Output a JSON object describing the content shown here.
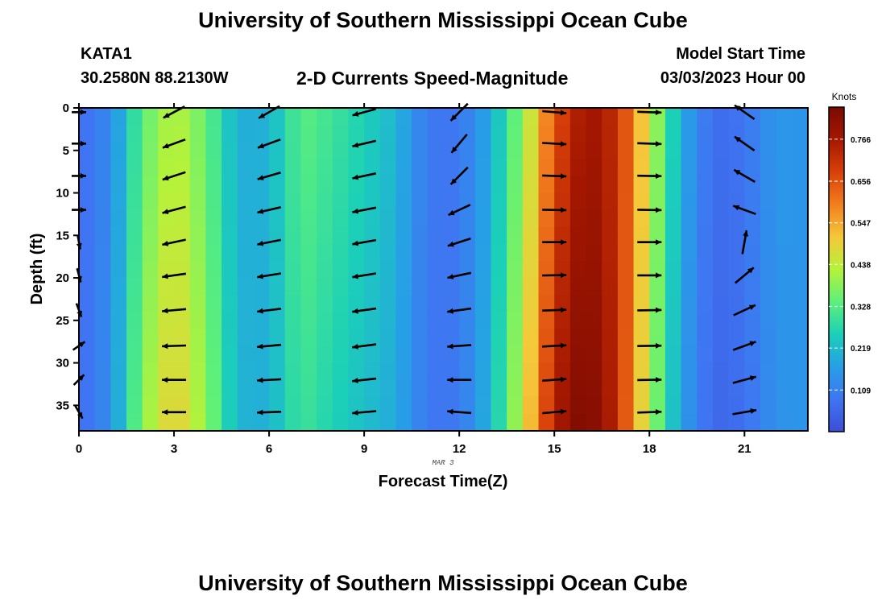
{
  "header": {
    "title": "University of Southern Mississippi Ocean Cube",
    "title_repeat": "University of Southern Mississippi Ocean Cube",
    "station": "KATA1",
    "coordinates": "30.2580N  88.2130W",
    "subtitle": "2-D Currents Speed-Magnitude",
    "model_start_label": "Model Start Time",
    "model_start_value": "03/03/2023 Hour 00"
  },
  "chart_data": {
    "type": "heatmap",
    "title": "2-D Currents Speed-Magnitude",
    "xlabel": "Forecast Time(Z)",
    "ylabel": "Depth (ft)",
    "date_label": "MAR 3",
    "xlim": [
      0,
      23
    ],
    "ylim": [
      38,
      0
    ],
    "x_ticks": [
      0,
      3,
      6,
      9,
      12,
      15,
      18,
      21
    ],
    "y_ticks": [
      0,
      5,
      10,
      15,
      20,
      25,
      30,
      35
    ],
    "colorbar": {
      "label": "Knots",
      "ticks": [
        0.109,
        0.219,
        0.328,
        0.438,
        0.547,
        0.656,
        0.766
      ],
      "range": [
        0.0,
        0.85
      ]
    },
    "speed_by_hour": [
      {
        "hour": 0,
        "speed": 0.07
      },
      {
        "hour": 1,
        "speed": 0.13
      },
      {
        "hour": 2,
        "speed": 0.36
      },
      {
        "hour": 3,
        "speed": 0.47
      },
      {
        "hour": 4,
        "speed": 0.37
      },
      {
        "hour": 5,
        "speed": 0.2
      },
      {
        "hour": 6,
        "speed": 0.2
      },
      {
        "hour": 7,
        "speed": 0.32
      },
      {
        "hour": 8,
        "speed": 0.28
      },
      {
        "hour": 9,
        "speed": 0.24
      },
      {
        "hour": 10,
        "speed": 0.2
      },
      {
        "hour": 11,
        "speed": 0.09
      },
      {
        "hour": 12,
        "speed": 0.09
      },
      {
        "hour": 13,
        "speed": 0.2
      },
      {
        "hour": 14,
        "speed": 0.42
      },
      {
        "hour": 15,
        "speed": 0.7
      },
      {
        "hour": 16,
        "speed": 0.82
      },
      {
        "hour": 17,
        "speed": 0.72
      },
      {
        "hour": 18,
        "speed": 0.43
      },
      {
        "hour": 19,
        "speed": 0.18
      },
      {
        "hour": 20,
        "speed": 0.06
      },
      {
        "hour": 21,
        "speed": 0.08
      },
      {
        "hour": 22,
        "speed": 0.15
      }
    ],
    "vectors": [
      {
        "hour": 0,
        "angle_deg": [
          0,
          0,
          0,
          0,
          -80,
          -75,
          -70,
          35,
          45,
          -60,
          -75,
          -80
        ],
        "length": 0.6
      },
      {
        "hour": 3,
        "angle_deg": [
          208,
          200,
          198,
          195,
          192,
          188,
          185,
          182,
          180,
          180,
          180,
          178
        ],
        "length": 1.0
      },
      {
        "hour": 6,
        "angle_deg": [
          210,
          200,
          196,
          193,
          191,
          189,
          187,
          185,
          183,
          182,
          181,
          180
        ],
        "length": 1.0
      },
      {
        "hour": 9,
        "angle_deg": [
          195,
          193,
          192,
          191,
          190,
          189,
          188,
          187,
          186,
          185,
          184,
          183
        ],
        "length": 1.0
      },
      {
        "hour": 12,
        "angle_deg": [
          225,
          230,
          225,
          205,
          198,
          192,
          188,
          184,
          180,
          176,
          172,
          165
        ],
        "length": 1.0
      },
      {
        "hour": 15,
        "angle_deg": [
          -5,
          -3,
          -2,
          -1,
          0,
          1,
          2,
          3,
          4,
          5,
          6,
          8
        ],
        "length": 1.0
      },
      {
        "hour": 18,
        "angle_deg": [
          -2,
          -2,
          -1,
          -1,
          0,
          0,
          1,
          1,
          1,
          2,
          2,
          2
        ],
        "length": 1.0
      },
      {
        "hour": 21,
        "angle_deg": [
          145,
          145,
          150,
          160,
          80,
          40,
          25,
          20,
          15,
          10,
          10,
          10
        ],
        "length": 1.0
      }
    ]
  }
}
